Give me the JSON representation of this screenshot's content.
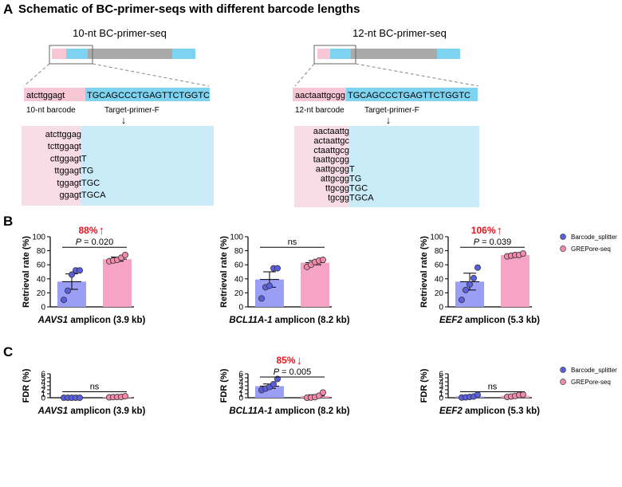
{
  "colors": {
    "pink_light": "#f9dde6",
    "blue_light": "#c9ecf8",
    "seq_pink": "#f7c7d6",
    "seq_blue": "#7ed3f1",
    "grey_bar": "#a9a9a9",
    "blue_bar": "#7ed3f1",
    "barcode_splitter_bar": "#9b9ef5",
    "barcode_splitter_dot": "#5a5fe0",
    "grepore_bar": "#f7a3c6",
    "grepore_dot": "#f08aa8",
    "annotation_red": "#e8141e"
  },
  "panel_a": {
    "label": "A",
    "title": "Schematic of BC-primer-seqs with different barcode lengths",
    "left": {
      "title": "10-nt BC-primer-seq",
      "barcode": "atcttggagt",
      "primer": "TGCAGCCCTGAGTTCTGGTC",
      "barcode_label": "10-nt barcode",
      "primer_label": "Target-primer-F",
      "arrow": "↓",
      "variants": [
        {
          "pink": "atcttggag",
          "blue": ""
        },
        {
          "pink": "tcttggagt",
          "blue": ""
        },
        {
          "pink": "cttggagt",
          "blue": "T"
        },
        {
          "pink": "ttggagt",
          "blue": "TG"
        },
        {
          "pink": "tggagt",
          "blue": "TGC"
        },
        {
          "pink": "ggagt",
          "blue": "TGCA"
        }
      ]
    },
    "right": {
      "title": "12-nt BC-primer-seq",
      "barcode": "aactaattgcgg",
      "primer": "TGCAGCCCTGAGTTCTGGTC",
      "barcode_label": "12-nt barcode",
      "primer_label": "Target-primer-F",
      "arrow": "↓",
      "variants": [
        {
          "pink": "aactaattg",
          "blue": ""
        },
        {
          "pink": "actaattgc",
          "blue": ""
        },
        {
          "pink": "ctaattgcg",
          "blue": ""
        },
        {
          "pink": "taattgcgg",
          "blue": ""
        },
        {
          "pink": "aattgcgg",
          "blue": "T"
        },
        {
          "pink": "attgcgg",
          "blue": "TG"
        },
        {
          "pink": "ttgcgg",
          "blue": "TGC"
        },
        {
          "pink": "tgcgg",
          "blue": "TGCA"
        }
      ]
    }
  },
  "panel_b": {
    "label": "B"
  },
  "panel_c": {
    "label": "C"
  },
  "legend": {
    "items": [
      "Barcode_splitter",
      "GREPore-seq"
    ]
  },
  "chart_data": [
    {
      "id": "b1",
      "type": "bar",
      "panel": "B",
      "ylabel": "Retrieval rate (%)",
      "ylim": [
        0,
        100
      ],
      "yticks": [
        0,
        20,
        40,
        60,
        80,
        100
      ],
      "xlabel_italic": "AAVS1",
      "xlabel_rest": " amplicon (3.9 kb)",
      "categories": [
        "Barcode_splitter",
        "GREPore-seq"
      ],
      "series": [
        {
          "name": "Barcode_splitter",
          "mean": 36,
          "sem": 11,
          "points": [
            10,
            23,
            46,
            52,
            52
          ]
        },
        {
          "name": "GREPore-seq",
          "mean": 68,
          "sem": 3,
          "points": [
            65,
            66,
            67,
            70,
            74
          ]
        }
      ],
      "pvalue_prefix": "P",
      "pvalue_text": " = 0.020",
      "annotation": "88%",
      "annotation_arrow": "↑"
    },
    {
      "id": "b2",
      "type": "bar",
      "panel": "B",
      "ylabel": "Retrieval rate (%)",
      "ylim": [
        0,
        100
      ],
      "yticks": [
        0,
        20,
        40,
        60,
        80,
        100
      ],
      "xlabel_italic": "BCL11A-1",
      "xlabel_rest": " amplicon (8.2 kb)",
      "categories": [
        "Barcode_splitter",
        "GREPore-seq"
      ],
      "series": [
        {
          "name": "Barcode_splitter",
          "mean": 39,
          "sem": 11,
          "points": [
            12,
            28,
            30,
            55,
            55
          ]
        },
        {
          "name": "GREPore-seq",
          "mean": 63,
          "sem": 3,
          "points": [
            57,
            60,
            64,
            66,
            67
          ]
        }
      ],
      "pvalue_text": "ns"
    },
    {
      "id": "b3",
      "type": "bar",
      "panel": "B",
      "ylabel": "Retrieval rate (%)",
      "ylim": [
        0,
        100
      ],
      "yticks": [
        0,
        20,
        40,
        60,
        80,
        100
      ],
      "xlabel_italic": "EEF2",
      "xlabel_rest": " amplicon (5.3 kb)",
      "categories": [
        "Barcode_splitter",
        "GREPore-seq"
      ],
      "series": [
        {
          "name": "Barcode_splitter",
          "mean": 36,
          "sem": 12,
          "points": [
            10,
            24,
            32,
            41,
            56
          ]
        },
        {
          "name": "GREPore-seq",
          "mean": 74,
          "sem": 1.5,
          "points": [
            72,
            73,
            74,
            74,
            76
          ]
        }
      ],
      "pvalue_prefix": "P",
      "pvalue_text": " = 0.039",
      "annotation": "106%",
      "annotation_arrow": "↑"
    },
    {
      "id": "c1",
      "type": "bar",
      "panel": "C",
      "ylabel": "FDR (%)",
      "ylim": [
        0,
        6
      ],
      "yticks": [
        0,
        1,
        2,
        3,
        4,
        5,
        6
      ],
      "xlabel_italic": "AAVS1",
      "xlabel_rest": " amplicon (3.9 kb)",
      "categories": [
        "Barcode_splitter",
        "GREPore-seq"
      ],
      "series": [
        {
          "name": "Barcode_splitter",
          "mean": 0,
          "sem": 0,
          "points": [
            0,
            0,
            0,
            0,
            0
          ]
        },
        {
          "name": "GREPore-seq",
          "mean": 0.2,
          "sem": 0.07,
          "points": [
            0.1,
            0.15,
            0.2,
            0.2,
            0.38
          ]
        }
      ],
      "pvalue_text": "ns"
    },
    {
      "id": "c2",
      "type": "bar",
      "panel": "C",
      "ylabel": "FDR (%)",
      "ylim": [
        0,
        6
      ],
      "yticks": [
        0,
        1,
        2,
        3,
        4,
        5,
        6
      ],
      "xlabel_italic": "BCL11A-1",
      "xlabel_rest": " amplicon (8.2 kb)",
      "categories": [
        "Barcode_splitter",
        "GREPore-seq"
      ],
      "series": [
        {
          "name": "Barcode_splitter",
          "mean": 2.9,
          "sem": 0.55,
          "points": [
            1.9,
            2.3,
            2.7,
            3.4,
            4.7
          ]
        },
        {
          "name": "GREPore-seq",
          "mean": 0.45,
          "sem": 0.3,
          "points": [
            0.0,
            0.05,
            0.15,
            0.5,
            1.3
          ]
        }
      ],
      "pvalue_prefix": "P",
      "pvalue_text": " = 0.005",
      "annotation": "85%",
      "annotation_arrow": "↓"
    },
    {
      "id": "c3",
      "type": "bar",
      "panel": "C",
      "ylabel": "FDR (%)",
      "ylim": [
        0,
        6
      ],
      "yticks": [
        0,
        1,
        2,
        3,
        4,
        5,
        6
      ],
      "xlabel_italic": "EEF2",
      "xlabel_rest": " amplicon (5.3 kb)",
      "categories": [
        "Barcode_splitter",
        "GREPore-seq"
      ],
      "series": [
        {
          "name": "Barcode_splitter",
          "mean": 0.3,
          "sem": 0.2,
          "points": [
            0.05,
            0.1,
            0.2,
            0.3,
            0.75
          ]
        },
        {
          "name": "GREPore-seq",
          "mean": 0.5,
          "sem": 0.18,
          "points": [
            0.2,
            0.3,
            0.45,
            0.7,
            0.8
          ]
        }
      ],
      "pvalue_text": "ns"
    }
  ]
}
